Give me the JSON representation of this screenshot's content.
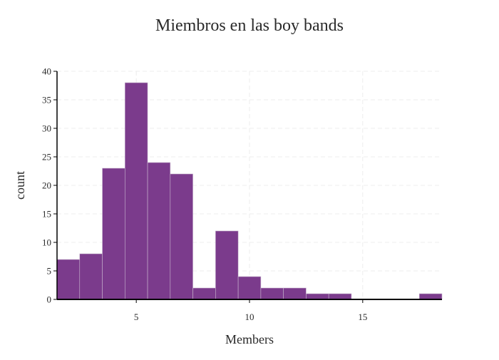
{
  "chart_data": {
    "type": "bar",
    "title": "Miembros en las boy bands",
    "xlabel": "Members",
    "ylabel": "count",
    "xlim": [
      1.5,
      18.5
    ],
    "ylim": [
      0,
      40
    ],
    "xticks": [
      5,
      10,
      15
    ],
    "yticks": [
      0,
      5,
      10,
      15,
      20,
      25,
      30,
      35,
      40
    ],
    "bin_width": 1,
    "bins": [
      {
        "x0": 1.5,
        "x1": 2.5,
        "count": 7
      },
      {
        "x0": 2.5,
        "x1": 3.5,
        "count": 8
      },
      {
        "x0": 3.5,
        "x1": 4.5,
        "count": 23
      },
      {
        "x0": 4.5,
        "x1": 5.5,
        "count": 38
      },
      {
        "x0": 5.5,
        "x1": 6.5,
        "count": 24
      },
      {
        "x0": 6.5,
        "x1": 7.5,
        "count": 22
      },
      {
        "x0": 7.5,
        "x1": 8.5,
        "count": 2
      },
      {
        "x0": 8.5,
        "x1": 9.5,
        "count": 12
      },
      {
        "x0": 9.5,
        "x1": 10.5,
        "count": 4
      },
      {
        "x0": 10.5,
        "x1": 11.5,
        "count": 2
      },
      {
        "x0": 11.5,
        "x1": 12.5,
        "count": 2
      },
      {
        "x0": 12.5,
        "x1": 13.5,
        "count": 1
      },
      {
        "x0": 13.5,
        "x1": 14.5,
        "count": 1
      },
      {
        "x0": 14.5,
        "x1": 15.5,
        "count": 0
      },
      {
        "x0": 15.5,
        "x1": 16.5,
        "count": 0
      },
      {
        "x0": 16.5,
        "x1": 17.5,
        "count": 0
      },
      {
        "x0": 17.5,
        "x1": 18.5,
        "count": 1
      }
    ],
    "grid": true,
    "bar_color": "#7b3b8c",
    "bar_edge_color": "#c9b6cf",
    "grid_color": "#ececec",
    "axis_color": "#000000"
  }
}
